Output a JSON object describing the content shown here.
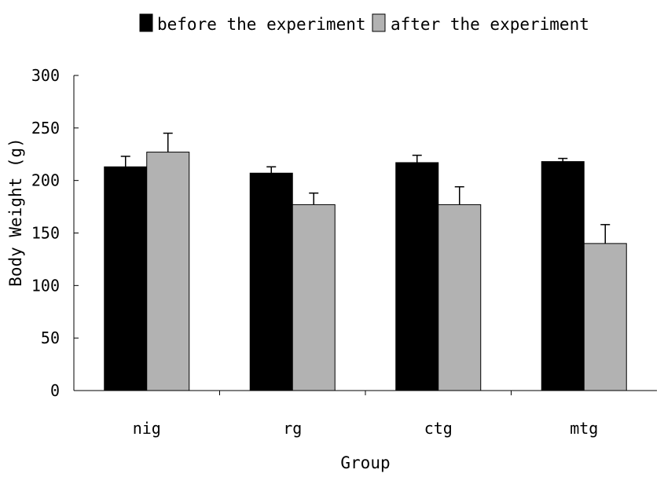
{
  "chart_data": {
    "type": "bar",
    "title": "",
    "xlabel": "Group",
    "ylabel": "Body Weight (g)",
    "categories": [
      "nig",
      "rg",
      "ctg",
      "mtg"
    ],
    "ylim": [
      0,
      300
    ],
    "yticks": [
      0,
      50,
      100,
      150,
      200,
      250,
      300
    ],
    "ytick_labels": [
      "0",
      "50",
      "100",
      "150",
      "200",
      "250",
      "300"
    ],
    "grid": false,
    "legend_position": "top-center",
    "series": [
      {
        "name": "before the experiment",
        "color": "#000000",
        "values": [
          213,
          207,
          217,
          218
        ],
        "errors": [
          10,
          6,
          7,
          3
        ]
      },
      {
        "name": "after the experiment",
        "color": "#b2b2b2",
        "values": [
          227,
          177,
          177,
          140
        ],
        "errors": [
          18,
          11,
          17,
          18
        ]
      }
    ]
  }
}
